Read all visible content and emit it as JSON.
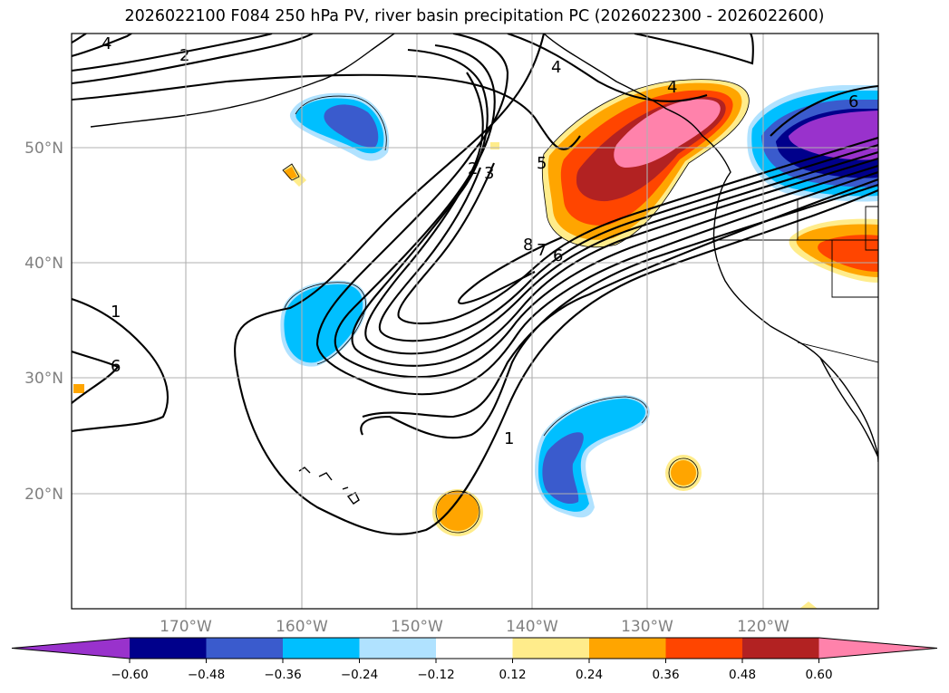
{
  "title": "2026022100 F084 250 hPa PV, river basin precipitation PC (2026022300 - 2026022600)",
  "map": {
    "lat_labels": [
      "50°N",
      "40°N",
      "30°N",
      "20°N"
    ],
    "lon_labels": [
      "170°W",
      "160°W",
      "150°W",
      "140°W",
      "130°W",
      "120°W"
    ]
  },
  "contour_labels": [
    "4",
    "2",
    "3",
    "5",
    "4",
    "4",
    "6",
    "8",
    "7",
    "6",
    "1",
    "2",
    "1",
    "6"
  ],
  "colorbar": {
    "colors": [
      "#9932cc",
      "#00008b",
      "#3a5bcd",
      "#00bfff",
      "#b0e2ff",
      "#ffffff",
      "#ffec8b",
      "#ffa500",
      "#ff4500",
      "#b22222",
      "#ff82ab"
    ],
    "tick_labels": [
      "−0.60",
      "−0.48",
      "−0.36",
      "−0.24",
      "−0.12",
      "0.12",
      "0.24",
      "0.36",
      "0.48",
      "0.60"
    ]
  }
}
